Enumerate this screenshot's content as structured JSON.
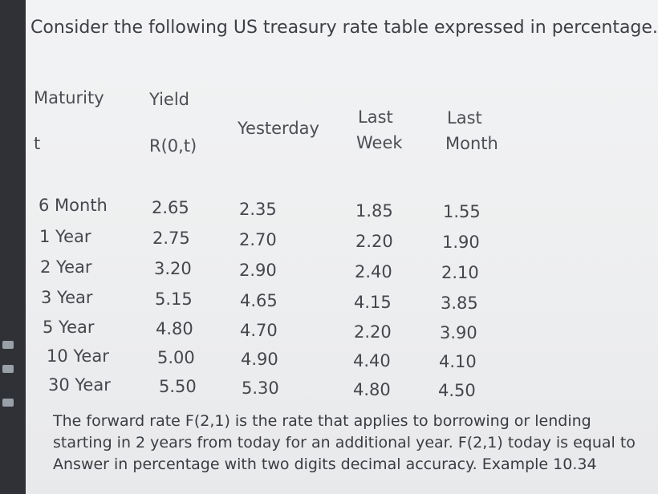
{
  "question": {
    "title": "Consider the following US treasury rate table expressed in percentage.",
    "headers": {
      "maturity": "Maturity",
      "t": "t",
      "yield": "Yield",
      "r0t": "R(0,t)",
      "yesterday": "Yesterday",
      "last_week_1": "Last",
      "last_week_2": "Week",
      "last_month_1": "Last",
      "last_month_2": "Month"
    },
    "rows": [
      {
        "maturity": "6 Month",
        "yield": "2.65",
        "yesterday": "2.35",
        "last_week": "1.85",
        "last_month": "1.55"
      },
      {
        "maturity": "1 Year",
        "yield": "2.75",
        "yesterday": "2.70",
        "last_week": "2.20",
        "last_month": "1.90"
      },
      {
        "maturity": "2 Year",
        "yield": "3.20",
        "yesterday": "2.90",
        "last_week": "2.40",
        "last_month": "2.10"
      },
      {
        "maturity": "3 Year",
        "yield": "5.15",
        "yesterday": "4.65",
        "last_week": "4.15",
        "last_month": "3.85"
      },
      {
        "maturity": "5 Year",
        "yield": "4.80",
        "yesterday": "4.70",
        "last_week": "2.20",
        "last_month": "3.90"
      },
      {
        "maturity": "10 Year",
        "yield": "5.00",
        "yesterday": "4.90",
        "last_week": "4.40",
        "last_month": "4.10"
      },
      {
        "maturity": "30 Year",
        "yield": "5.50",
        "yesterday": "5.30",
        "last_week": "4.80",
        "last_month": "4.50"
      }
    ],
    "paragraph": [
      "The forward rate F(2,1) is the rate that applies to borrowing or lending",
      "starting in 2 years from today for an additional year.  F(2,1) today is equal to",
      "Answer in percentage with two digits decimal accuracy. Example 10.34"
    ]
  }
}
